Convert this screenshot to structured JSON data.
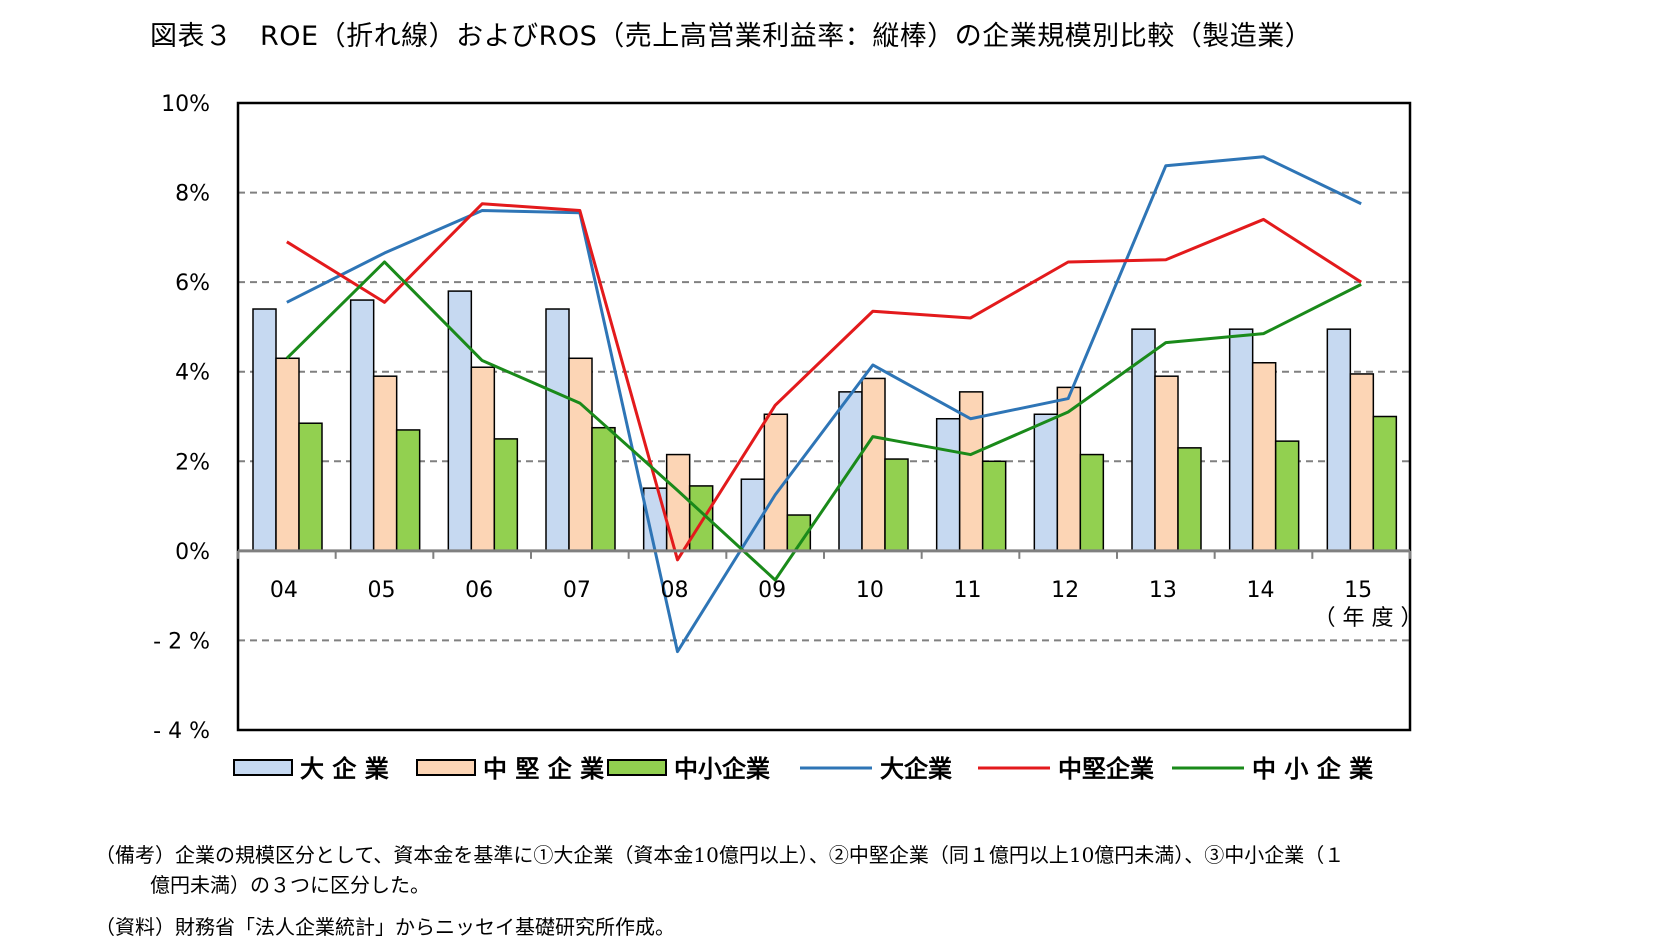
{
  "title": "図表３　ROE（折れ線）およびROS（売上高営業利益率：縦棒）の企業規模別比較（製造業）",
  "notes": {
    "line1": "（備考）企業の規模区分として、資本金を基準に①大企業（資本金10億円以上）、②中堅企業（同１億円以上10億円未満）、③中小企業（１",
    "line2": "億円未満）の３つに区分した。",
    "line3": "（資料）財務省「法人企業統計」からニッセイ基礎研究所作成。"
  },
  "chart_data": {
    "type": "bar",
    "categories": [
      "04",
      "05",
      "06",
      "07",
      "08",
      "09",
      "10",
      "11",
      "12",
      "13",
      "14",
      "15"
    ],
    "xlabel": "（ 年 度 ）",
    "ylim": [
      -4,
      10
    ],
    "yticks": [
      10,
      8,
      6,
      4,
      2,
      0,
      -2,
      -4
    ],
    "ytick_labels": [
      "10%",
      "8%",
      "6%",
      "4%",
      "2%",
      "0%",
      "- 2 %",
      "- 4 %"
    ],
    "grid": "dashed horizontal",
    "legend_position": "bottom",
    "bar_series": [
      {
        "name": "大 企 業",
        "color": "#c6d9f1",
        "values": [
          5.4,
          5.6,
          5.8,
          5.4,
          1.4,
          1.6,
          3.55,
          2.95,
          3.05,
          4.95,
          4.95,
          4.95
        ]
      },
      {
        "name": "中 堅 企 業",
        "color": "#fcd5b5",
        "values": [
          4.3,
          3.9,
          4.1,
          4.3,
          2.15,
          3.05,
          3.85,
          3.55,
          3.65,
          3.9,
          4.2,
          3.95
        ]
      },
      {
        "name": "中小企業",
        "color": "#92d050",
        "values": [
          2.85,
          2.7,
          2.5,
          2.75,
          1.45,
          0.8,
          2.05,
          2.0,
          2.15,
          2.3,
          2.45,
          3.0
        ]
      }
    ],
    "line_series": [
      {
        "name": "大企業",
        "color": "#2e75b6",
        "values": [
          5.55,
          6.65,
          7.6,
          7.55,
          -2.25,
          1.25,
          4.15,
          2.95,
          3.4,
          8.6,
          8.8,
          7.75
        ]
      },
      {
        "name": "中堅企業",
        "color": "#e31a1c",
        "values": [
          6.9,
          5.55,
          7.75,
          7.6,
          -0.2,
          3.25,
          5.35,
          5.2,
          6.45,
          6.5,
          7.4,
          6.0
        ]
      },
      {
        "name": "中 小 企 業",
        "color": "#1a8a1a",
        "values": [
          4.3,
          6.45,
          4.25,
          3.3,
          1.35,
          -0.65,
          2.55,
          2.15,
          3.1,
          4.65,
          4.85,
          5.95
        ]
      }
    ]
  }
}
